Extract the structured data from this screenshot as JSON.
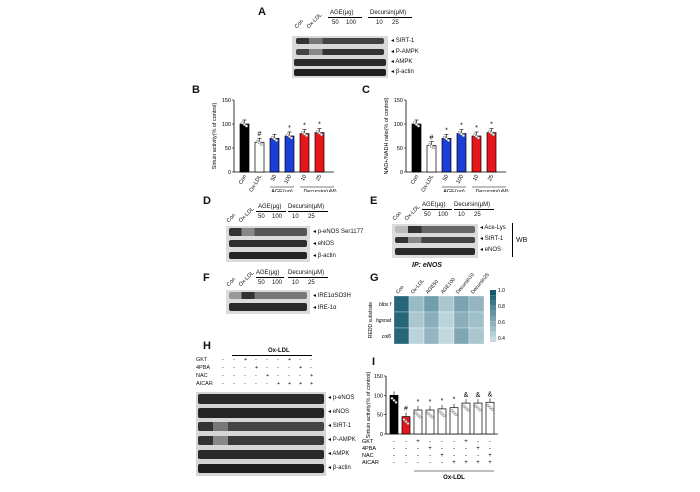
{
  "panels": {
    "A": {
      "label": "A",
      "lanes": [
        "Con",
        "Ox-LDL"
      ],
      "age_group": "AGE(μg)",
      "decursin_group": "Decursin(μM)",
      "doses": [
        "50",
        "100",
        "10",
        "25"
      ],
      "bands": [
        "SIRT-1",
        "P-AMPK",
        "AMPK",
        "β-actin"
      ]
    },
    "B": {
      "label": "B",
      "ylabel": "Sirtuin activity(% of control)",
      "marks": {
        "hash": "#",
        "star": "*"
      },
      "x_top": [
        "Con",
        "Ox-LDL",
        "50",
        "100",
        "10",
        "25"
      ],
      "group_age": "AGE(μg)",
      "group_dec": "Decursin(μM)"
    },
    "C": {
      "label": "C",
      "ylabel": "NAD+/NADH ratio(% of control)",
      "x_top": [
        "Con",
        "Ox-LDL",
        "50",
        "100",
        "10",
        "25"
      ],
      "group_age": "AGE(μg)",
      "group_dec": "Decursin(μM)"
    },
    "D": {
      "label": "D",
      "lanes": [
        "Con",
        "Ox-LDL"
      ],
      "age_group": "AGE(μg)",
      "decursin_group": "Decursin(μM)",
      "doses": [
        "50",
        "100",
        "10",
        "25"
      ],
      "bands": [
        "p-eNOS Ser1177",
        "eNOS",
        "β-actin"
      ]
    },
    "E": {
      "label": "E",
      "lanes": [
        "Con",
        "Ox-LDL"
      ],
      "age_group": "AGE(μg)",
      "decursin_group": "Decursin(μM)",
      "doses": [
        "50",
        "100",
        "10",
        "25"
      ],
      "bands": [
        "Ace-Lys",
        "SIRT-1",
        "eNOS"
      ],
      "wb": "WB",
      "ip": "IP: eNOS"
    },
    "F": {
      "label": "F",
      "lanes": [
        "Con",
        "Ox-LDL"
      ],
      "age_group": "AGE(μg)",
      "decursin_group": "Decursin(μM)",
      "doses": [
        "50",
        "100",
        "10",
        "25"
      ],
      "bands": [
        "IRE1αSO3H",
        "IRE-1α"
      ]
    },
    "G": {
      "label": "G",
      "columns": [
        "Con",
        "Ox-LDL",
        "AGE50",
        "AGE100",
        "Decursin10",
        "Decursin25"
      ],
      "rows": [
        "blbs f",
        "hgsnat",
        "col6"
      ],
      "ylabel": "REDD substrate",
      "colorbar_ticks": [
        "1.0",
        "0.8",
        "0.6",
        "0.4"
      ]
    },
    "H": {
      "label": "H",
      "group": "Ox-LDL",
      "treatments": [
        "GKT",
        "4PBA",
        "NAC",
        "AICAR"
      ],
      "bands": [
        "p-eNOS",
        "eNOS",
        "SIRT-1",
        "P-AMPK",
        "AMPK",
        "β-actin"
      ]
    },
    "I": {
      "label": "I",
      "ylabel": "Sirtuin activity(% of control)",
      "treatments": [
        "GKT",
        "4PBA",
        "NAC",
        "AICAR"
      ],
      "group": "Ox-LDL",
      "marks": {
        "hash": "#",
        "star": "*",
        "amp": "&"
      }
    }
  },
  "signs": {
    "minus": "-",
    "plus": "+"
  },
  "chart_data": [
    {
      "type": "bar",
      "panel": "B",
      "title": "",
      "ylabel": "Sirtuin activity(% of control)",
      "categories": [
        "Con",
        "Ox-LDL",
        "AGE 50",
        "AGE 100",
        "Decursin 10",
        "Decursin 25"
      ],
      "values": [
        100,
        62,
        70,
        75,
        80,
        82
      ],
      "colors": [
        "#000000",
        "#ffffff",
        "#1a3fd6",
        "#1a3fd6",
        "#e8151b",
        "#e8151b"
      ],
      "ylim": [
        0,
        150
      ],
      "yticks": [
        "0",
        "50",
        "100",
        "150"
      ],
      "annotations": [
        "",
        "#",
        "",
        "*",
        "*",
        "*"
      ]
    },
    {
      "type": "bar",
      "panel": "C",
      "title": "",
      "ylabel": "NAD+/NADH ratio(% of control)",
      "categories": [
        "Con",
        "Ox-LDL",
        "AGE 50",
        "AGE 100",
        "Decursin 10",
        "Decursin 25"
      ],
      "values": [
        100,
        55,
        70,
        80,
        75,
        82
      ],
      "colors": [
        "#000000",
        "#ffffff",
        "#1a3fd6",
        "#1a3fd6",
        "#e8151b",
        "#e8151b"
      ],
      "ylim": [
        0,
        150
      ],
      "yticks": [
        "0",
        "50",
        "100",
        "150"
      ],
      "annotations": [
        "",
        "#",
        "*",
        "*",
        "*",
        "*"
      ]
    },
    {
      "type": "heatmap",
      "panel": "G",
      "columns": [
        "Con",
        "Ox-LDL",
        "AGE50",
        "AGE100",
        "Decursin10",
        "Decursin25"
      ],
      "rows": [
        "blbs f",
        "hgsnat",
        "col6"
      ],
      "values": [
        [
          0.95,
          0.6,
          0.72,
          0.55,
          0.7,
          0.62
        ],
        [
          0.95,
          0.55,
          0.65,
          0.5,
          0.65,
          0.58
        ],
        [
          0.95,
          0.5,
          0.62,
          0.48,
          0.68,
          0.55
        ]
      ],
      "range": [
        0.4,
        1.0
      ]
    },
    {
      "type": "bar",
      "panel": "I",
      "ylabel": "Sirtuin activity(% of control)",
      "categories": [
        "Con",
        "Ox-LDL",
        "GKT",
        "4PBA",
        "NAC",
        "AICAR",
        "GKT+AICAR",
        "4PBA+AICAR",
        "NAC+AICAR"
      ],
      "values": [
        100,
        45,
        62,
        62,
        65,
        68,
        80,
        80,
        82
      ],
      "colors": [
        "#000000",
        "#e8151b",
        "#ffffff",
        "#ffffff",
        "#ffffff",
        "#ffffff",
        "#ffffff",
        "#ffffff",
        "#ffffff"
      ],
      "ylim": [
        0,
        150
      ],
      "yticks": [
        "0",
        "50",
        "100",
        "150"
      ],
      "annotations": [
        "",
        "#",
        "*",
        "*",
        "*",
        "*",
        "&",
        "&",
        "&"
      ],
      "signs": {
        "GKT": [
          "-",
          "-",
          "+",
          "-",
          "-",
          "-",
          "+",
          "-",
          "-"
        ],
        "4PBA": [
          "-",
          "-",
          "-",
          "+",
          "-",
          "-",
          "-",
          "+",
          "-"
        ],
        "NAC": [
          "-",
          "-",
          "-",
          "-",
          "+",
          "-",
          "-",
          "-",
          "+"
        ],
        "AICAR": [
          "-",
          "-",
          "-",
          "-",
          "-",
          "+",
          "+",
          "+",
          "+"
        ]
      }
    }
  ]
}
